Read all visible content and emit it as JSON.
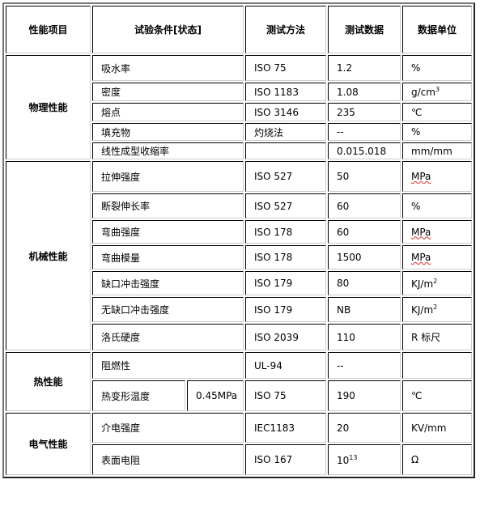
{
  "headers": [
    "性能项目",
    "试验条件[状态]",
    "测试方法",
    "测试数据",
    "数据单位"
  ],
  "groups": {
    "physical": {
      "label": "物理性能",
      "rows": [
        {
          "item": "吸水率",
          "method": "ISO 75",
          "value": "1.2",
          "unit": "%"
        },
        {
          "item": "密度",
          "method": "ISO 1183",
          "value": "1.08",
          "unit": "g/cm",
          "unit_sup": "3"
        },
        {
          "item": "熔点",
          "method": "ISO 3146",
          "value": "235",
          "unit": "℃"
        },
        {
          "item": "填充物",
          "method": "灼烧法",
          "value": "--",
          "unit": "%"
        },
        {
          "item": "线性成型收缩率",
          "method": "",
          "value": "0.015.018",
          "unit": "mm/mm"
        }
      ]
    },
    "mechanical": {
      "label": "机械性能",
      "rows": [
        {
          "item": "拉伸强度",
          "method": "ISO 527",
          "value": "50",
          "unit": "MPa"
        },
        {
          "item": "断裂伸长率",
          "method": "ISO 527",
          "value": "60",
          "unit": "%"
        },
        {
          "item": "弯曲强度",
          "method": "ISO 178",
          "value": "60",
          "unit": "MPa"
        },
        {
          "item": "弯曲模量",
          "method": "ISO 178",
          "value": "1500",
          "unit": "MPa"
        },
        {
          "item": "缺口冲击强度",
          "method": "ISO 179",
          "value": "80",
          "unit": "KJ/m",
          "unit_sup": "2"
        },
        {
          "item": "无缺口冲击强度",
          "method": "ISO 179",
          "value": "NB",
          "unit": "KJ/m",
          "unit_sup": "2"
        },
        {
          "item": "洛氏硬度",
          "method": "ISO 2039",
          "value": "110",
          "unit": "R 标尺"
        }
      ]
    },
    "thermal": {
      "label": "热性能",
      "rows": [
        {
          "item": "阻燃性",
          "method": "UL-94",
          "value": "--",
          "unit": ""
        },
        {
          "item": "热变形温度",
          "condition": "0.45MPa",
          "method": "ISO 75",
          "value": "190",
          "unit": "℃"
        }
      ]
    },
    "electrical": {
      "label": "电气性能",
      "rows": [
        {
          "item": "介电强度",
          "method": "IEC1183",
          "value": "20",
          "unit": "KV/mm"
        },
        {
          "item": "表面电阻",
          "method": "ISO 167",
          "value": "10",
          "value_sup": "13",
          "unit": "Ω"
        }
      ]
    }
  }
}
